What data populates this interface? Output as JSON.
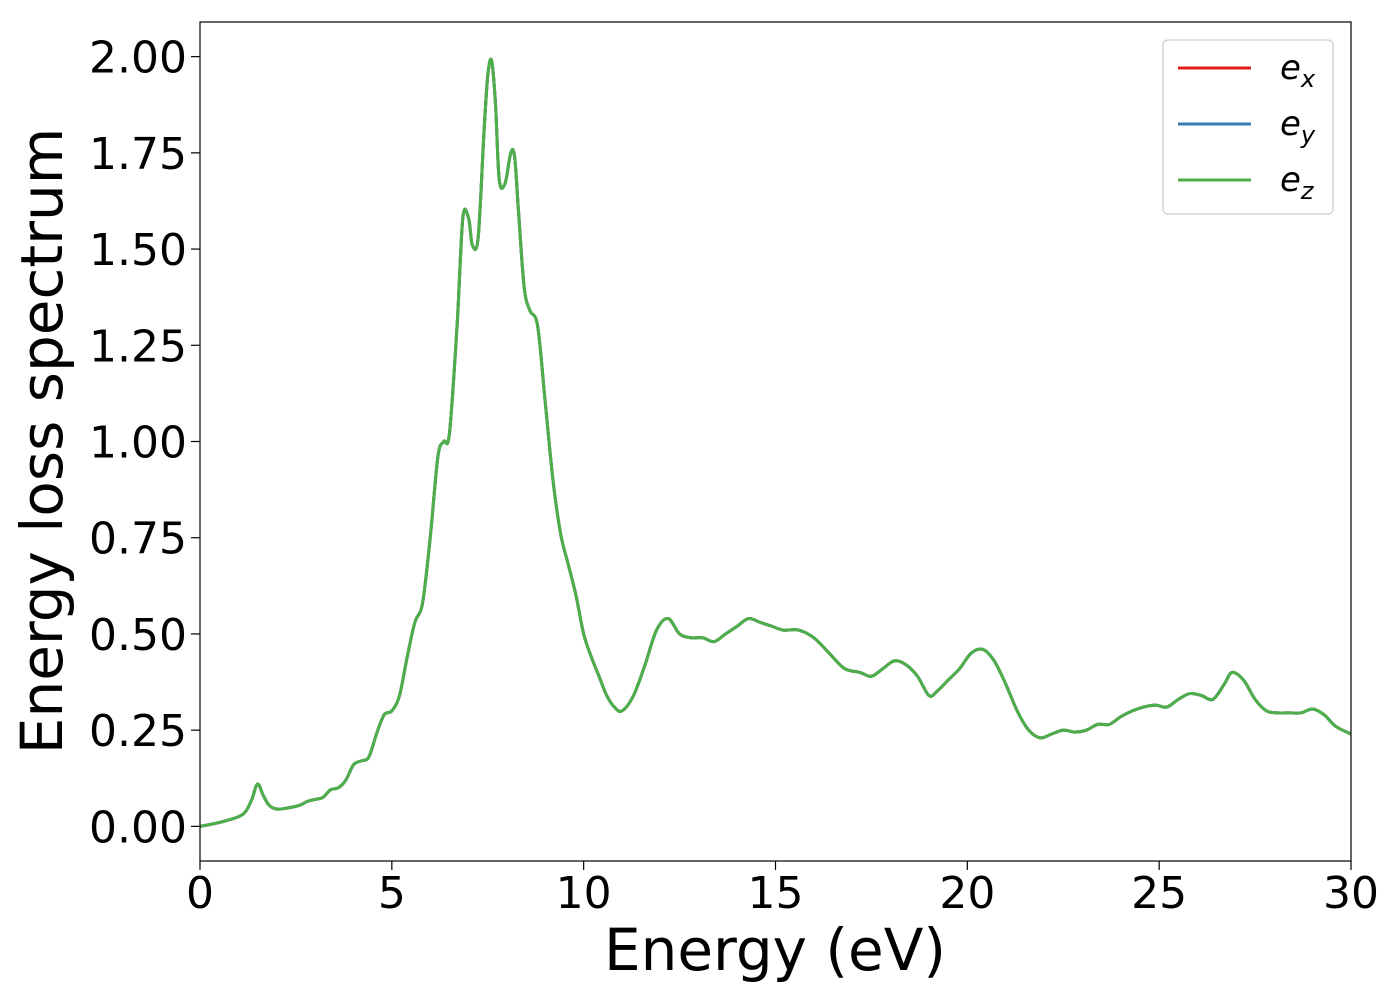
{
  "chart_data": {
    "type": "line",
    "title": "",
    "xlabel": "Energy (eV)",
    "ylabel": "Energy loss spectrum",
    "xlim": [
      0,
      30
    ],
    "ylim": [
      -0.09,
      2.09
    ],
    "xticks": [
      0,
      5,
      10,
      15,
      20,
      25,
      30
    ],
    "xtick_labels": [
      "0",
      "5",
      "10",
      "15",
      "20",
      "25",
      "30"
    ],
    "yticks": [
      0.0,
      0.25,
      0.5,
      0.75,
      1.0,
      1.25,
      1.5,
      1.75,
      2.0
    ],
    "ytick_labels": [
      "0.00",
      "0.25",
      "0.50",
      "0.75",
      "1.00",
      "1.25",
      "1.50",
      "1.75",
      "2.00"
    ],
    "grid": false,
    "legend_position": "top-right",
    "legend": [
      {
        "base": "e",
        "sub": "x",
        "color": "#e41a1c"
      },
      {
        "base": "e",
        "sub": "y",
        "color": "#377eb8"
      },
      {
        "base": "e",
        "sub": "z",
        "color": "#4daf4a"
      }
    ],
    "x": [
      0,
      0.5,
      1.0,
      1.2,
      1.35,
      1.5,
      1.65,
      1.8,
      2.0,
      2.3,
      2.6,
      2.8,
      3.0,
      3.2,
      3.4,
      3.6,
      3.8,
      4.0,
      4.2,
      4.4,
      4.6,
      4.8,
      5.0,
      5.2,
      5.4,
      5.6,
      5.8,
      6.0,
      6.2,
      6.35,
      6.5,
      6.7,
      6.85,
      7.0,
      7.1,
      7.25,
      7.4,
      7.5,
      7.6,
      7.7,
      7.8,
      7.95,
      8.1,
      8.2,
      8.3,
      8.45,
      8.6,
      8.8,
      9.0,
      9.2,
      9.4,
      9.6,
      9.8,
      10.0,
      10.2,
      10.4,
      10.6,
      10.8,
      11.0,
      11.3,
      11.6,
      11.9,
      12.2,
      12.5,
      12.8,
      13.1,
      13.4,
      13.7,
      14.0,
      14.3,
      14.6,
      14.9,
      15.2,
      15.6,
      16.0,
      16.4,
      16.8,
      17.2,
      17.5,
      17.8,
      18.1,
      18.4,
      18.7,
      19.0,
      19.2,
      19.5,
      19.8,
      20.1,
      20.4,
      20.7,
      21.0,
      21.3,
      21.6,
      21.9,
      22.2,
      22.5,
      22.8,
      23.1,
      23.4,
      23.7,
      24.0,
      24.3,
      24.6,
      24.9,
      25.2,
      25.5,
      25.8,
      26.1,
      26.4,
      26.7,
      26.9,
      27.2,
      27.5,
      27.8,
      28.1,
      28.4,
      28.7,
      29.0,
      29.3,
      29.6,
      30.0
    ],
    "series": [
      {
        "name": "e_x",
        "color": "#e41a1c",
        "y": [
          0.0,
          0.01,
          0.025,
          0.04,
          0.07,
          0.11,
          0.08,
          0.055,
          0.045,
          0.048,
          0.055,
          0.065,
          0.07,
          0.075,
          0.095,
          0.1,
          0.12,
          0.16,
          0.17,
          0.18,
          0.24,
          0.29,
          0.3,
          0.34,
          0.44,
          0.53,
          0.58,
          0.75,
          0.96,
          1.0,
          1.02,
          1.3,
          1.58,
          1.58,
          1.51,
          1.53,
          1.8,
          1.95,
          1.99,
          1.88,
          1.68,
          1.67,
          1.75,
          1.74,
          1.6,
          1.4,
          1.34,
          1.3,
          1.1,
          0.9,
          0.76,
          0.68,
          0.6,
          0.5,
          0.44,
          0.39,
          0.34,
          0.31,
          0.3,
          0.34,
          0.42,
          0.51,
          0.54,
          0.5,
          0.49,
          0.49,
          0.48,
          0.5,
          0.52,
          0.54,
          0.53,
          0.52,
          0.51,
          0.51,
          0.49,
          0.45,
          0.41,
          0.4,
          0.39,
          0.41,
          0.43,
          0.42,
          0.39,
          0.34,
          0.35,
          0.38,
          0.41,
          0.45,
          0.46,
          0.43,
          0.37,
          0.3,
          0.25,
          0.23,
          0.24,
          0.25,
          0.245,
          0.25,
          0.265,
          0.265,
          0.285,
          0.3,
          0.31,
          0.315,
          0.31,
          0.33,
          0.345,
          0.34,
          0.33,
          0.37,
          0.4,
          0.38,
          0.33,
          0.3,
          0.295,
          0.295,
          0.295,
          0.305,
          0.29,
          0.26,
          0.24
        ]
      },
      {
        "name": "e_y",
        "color": "#377eb8",
        "y": [
          0.0,
          0.01,
          0.025,
          0.04,
          0.07,
          0.11,
          0.08,
          0.055,
          0.045,
          0.048,
          0.055,
          0.065,
          0.07,
          0.075,
          0.095,
          0.1,
          0.12,
          0.16,
          0.17,
          0.18,
          0.24,
          0.29,
          0.3,
          0.34,
          0.44,
          0.53,
          0.58,
          0.75,
          0.96,
          1.0,
          1.02,
          1.3,
          1.58,
          1.58,
          1.51,
          1.53,
          1.8,
          1.95,
          1.99,
          1.88,
          1.68,
          1.67,
          1.75,
          1.74,
          1.6,
          1.4,
          1.34,
          1.3,
          1.1,
          0.9,
          0.76,
          0.68,
          0.6,
          0.5,
          0.44,
          0.39,
          0.34,
          0.31,
          0.3,
          0.34,
          0.42,
          0.51,
          0.54,
          0.5,
          0.49,
          0.49,
          0.48,
          0.5,
          0.52,
          0.54,
          0.53,
          0.52,
          0.51,
          0.51,
          0.49,
          0.45,
          0.41,
          0.4,
          0.39,
          0.41,
          0.43,
          0.42,
          0.39,
          0.34,
          0.35,
          0.38,
          0.41,
          0.45,
          0.46,
          0.43,
          0.37,
          0.3,
          0.25,
          0.23,
          0.24,
          0.25,
          0.245,
          0.25,
          0.265,
          0.265,
          0.285,
          0.3,
          0.31,
          0.315,
          0.31,
          0.33,
          0.345,
          0.34,
          0.33,
          0.37,
          0.4,
          0.38,
          0.33,
          0.3,
          0.295,
          0.295,
          0.295,
          0.305,
          0.29,
          0.26,
          0.24
        ]
      },
      {
        "name": "e_z",
        "color": "#4daf4a",
        "y": [
          0.0,
          0.01,
          0.025,
          0.04,
          0.07,
          0.11,
          0.08,
          0.055,
          0.045,
          0.048,
          0.055,
          0.065,
          0.07,
          0.075,
          0.095,
          0.1,
          0.12,
          0.16,
          0.17,
          0.18,
          0.24,
          0.29,
          0.3,
          0.34,
          0.44,
          0.53,
          0.58,
          0.75,
          0.96,
          1.0,
          1.02,
          1.3,
          1.58,
          1.58,
          1.51,
          1.53,
          1.8,
          1.95,
          1.99,
          1.88,
          1.68,
          1.67,
          1.75,
          1.74,
          1.6,
          1.4,
          1.34,
          1.3,
          1.1,
          0.9,
          0.76,
          0.68,
          0.6,
          0.5,
          0.44,
          0.39,
          0.34,
          0.31,
          0.3,
          0.34,
          0.42,
          0.51,
          0.54,
          0.5,
          0.49,
          0.49,
          0.48,
          0.5,
          0.52,
          0.54,
          0.53,
          0.52,
          0.51,
          0.51,
          0.49,
          0.45,
          0.41,
          0.4,
          0.39,
          0.41,
          0.43,
          0.42,
          0.39,
          0.34,
          0.35,
          0.38,
          0.41,
          0.45,
          0.46,
          0.43,
          0.37,
          0.3,
          0.25,
          0.23,
          0.24,
          0.25,
          0.245,
          0.25,
          0.265,
          0.265,
          0.285,
          0.3,
          0.31,
          0.315,
          0.31,
          0.33,
          0.345,
          0.34,
          0.33,
          0.37,
          0.4,
          0.38,
          0.33,
          0.3,
          0.295,
          0.295,
          0.295,
          0.305,
          0.29,
          0.26,
          0.24
        ]
      }
    ]
  }
}
